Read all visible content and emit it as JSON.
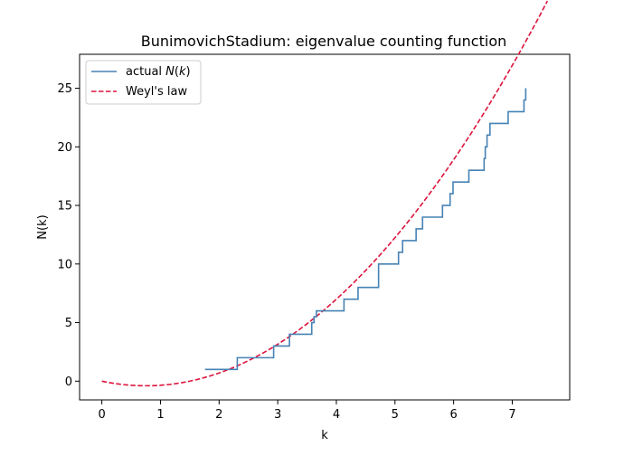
{
  "chart_data": {
    "type": "line",
    "title": "BunimovichStadium: eigenvalue counting function",
    "xlabel": "k",
    "ylabel": "N(k)",
    "xlim": [
      -0.38,
      7.98
    ],
    "ylim": [
      -1.6,
      27.9
    ],
    "xticks": [
      0,
      1,
      2,
      3,
      4,
      5,
      6,
      7
    ],
    "yticks": [
      0,
      5,
      10,
      15,
      20,
      25
    ],
    "grid": false,
    "legend_position": "top-left",
    "colors": {
      "actual": "#4682b4",
      "weyl": "#dc143c"
    },
    "series": [
      {
        "name_prefix": "actual ",
        "name_math": "N",
        "name_open": "(",
        "name_var": "k",
        "name_close": ")",
        "style": "step",
        "points": [
          [
            1.76,
            1
          ],
          [
            2.31,
            2
          ],
          [
            2.93,
            3
          ],
          [
            3.2,
            4
          ],
          [
            3.58,
            5
          ],
          [
            3.62,
            5.5
          ],
          [
            3.66,
            6
          ],
          [
            4.13,
            7
          ],
          [
            4.37,
            8
          ],
          [
            4.72,
            10
          ],
          [
            5.06,
            11
          ],
          [
            5.13,
            12
          ],
          [
            5.36,
            13
          ],
          [
            5.47,
            14
          ],
          [
            5.81,
            15
          ],
          [
            5.94,
            16
          ],
          [
            5.99,
            17
          ],
          [
            6.26,
            18
          ],
          [
            6.52,
            19
          ],
          [
            6.54,
            20
          ],
          [
            6.57,
            21
          ],
          [
            6.62,
            22
          ],
          [
            6.93,
            23
          ],
          [
            7.2,
            24
          ],
          [
            7.23,
            25
          ]
        ]
      },
      {
        "name": "Weyl's law",
        "style": "dashed",
        "formula": "0.7*k^2 - 1.05*k",
        "x_range": [
          0,
          7.6
        ]
      }
    ]
  }
}
